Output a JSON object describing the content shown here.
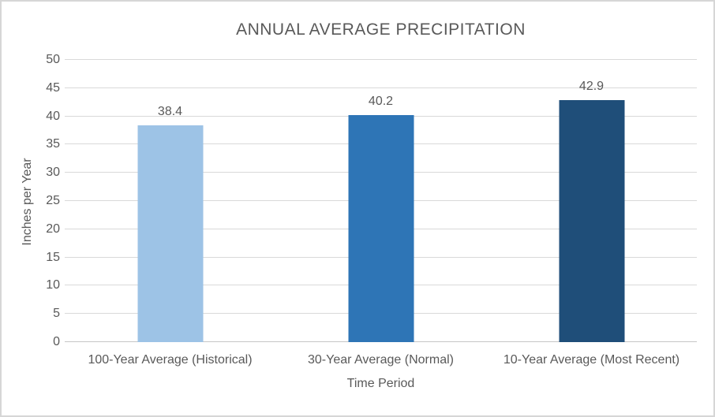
{
  "chart": {
    "title": "ANNUAL AVERAGE PRECIPITATION",
    "x_axis_title": "Time Period",
    "y_axis_title": "Inches per Year"
  },
  "chart_data": {
    "type": "bar",
    "title": "ANNUAL AVERAGE PRECIPITATION",
    "categories": [
      "100-Year Average (Historical)",
      "30-Year Average (Normal)",
      "10-Year Average (Most Recent)"
    ],
    "values": [
      38.4,
      40.2,
      42.9
    ],
    "data_labels": [
      "38.4",
      "40.2",
      "42.9"
    ],
    "bar_colors": [
      "#9DC3E6",
      "#2E75B6",
      "#1F4E79"
    ],
    "xlabel": "Time Period",
    "ylabel": "Inches per Year",
    "ylim": [
      0,
      50
    ],
    "yticks": [
      0,
      5,
      10,
      15,
      20,
      25,
      30,
      35,
      40,
      45,
      50
    ],
    "grid": true,
    "legend": false,
    "colors": {
      "gridline": "#D9D9D9",
      "axis_line": "#C6C6C6",
      "text": "#595959",
      "frame_border": "#D6D6D6",
      "background": "#FFFFFF"
    }
  }
}
